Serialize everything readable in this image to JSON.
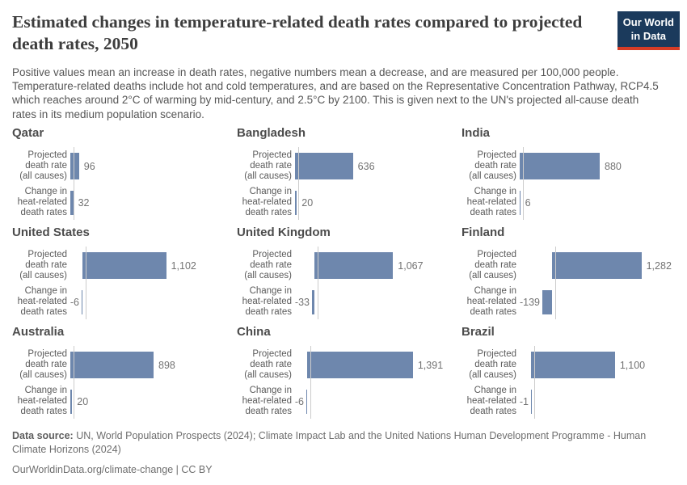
{
  "header": {
    "title": "Estimated changes in temperature-related death rates compared to projected death rates, 2050",
    "subtitle": "Positive values mean an increase in death rates, negative numbers mean a decrease, and are measured per 100,000 people. Temperature-related deaths include hot and cold temperatures, and are based on the Representative Concentration Pathway, RCP4.5 which reaches around 2°C of warming by mid-century, and 2.5°C by 2100. This is given next to the UN's projected all-cause death rates in its medium population scenario.",
    "logo": {
      "line1": "Our World",
      "line2": "in Data",
      "bg_color": "#1b3a5c",
      "accent_color": "#d63c26"
    }
  },
  "chart_data": {
    "type": "bar",
    "orientation": "horizontal",
    "year": 2050,
    "unit": "per 100,000 people",
    "facet_layout": {
      "rows": 3,
      "cols": 3
    },
    "bar_color": "#6e87ad",
    "axis_color": "#cccccc",
    "series_names": [
      "Projected death rate (all causes)",
      "Change in heat-related death rates"
    ],
    "row_labels": [
      [
        "Projected",
        "death rate",
        "(all causes)"
      ],
      [
        "Change in",
        "heat-related",
        "death rates"
      ]
    ],
    "facets": [
      {
        "country": "Qatar",
        "values": [
          96,
          32
        ]
      },
      {
        "country": "Bangladesh",
        "values": [
          636,
          20
        ]
      },
      {
        "country": "India",
        "values": [
          880,
          6
        ]
      },
      {
        "country": "United States",
        "values": [
          1102,
          -6
        ]
      },
      {
        "country": "United Kingdom",
        "values": [
          1067,
          -33
        ]
      },
      {
        "country": "Finland",
        "values": [
          1282,
          -139
        ]
      },
      {
        "country": "Australia",
        "values": [
          898,
          20
        ]
      },
      {
        "country": "China",
        "values": [
          1391,
          -6
        ]
      },
      {
        "country": "Brazil",
        "values": [
          1100,
          -1
        ]
      }
    ]
  },
  "footer": {
    "source_label": "Data source:",
    "source_text": "UN, World Population Prospects (2024); Climate Impact Lab and the United Nations Human Development Programme - Human Climate Horizons (2024)",
    "url": "OurWorldinData.org/climate-change",
    "separator": " | ",
    "license": "CC BY"
  }
}
